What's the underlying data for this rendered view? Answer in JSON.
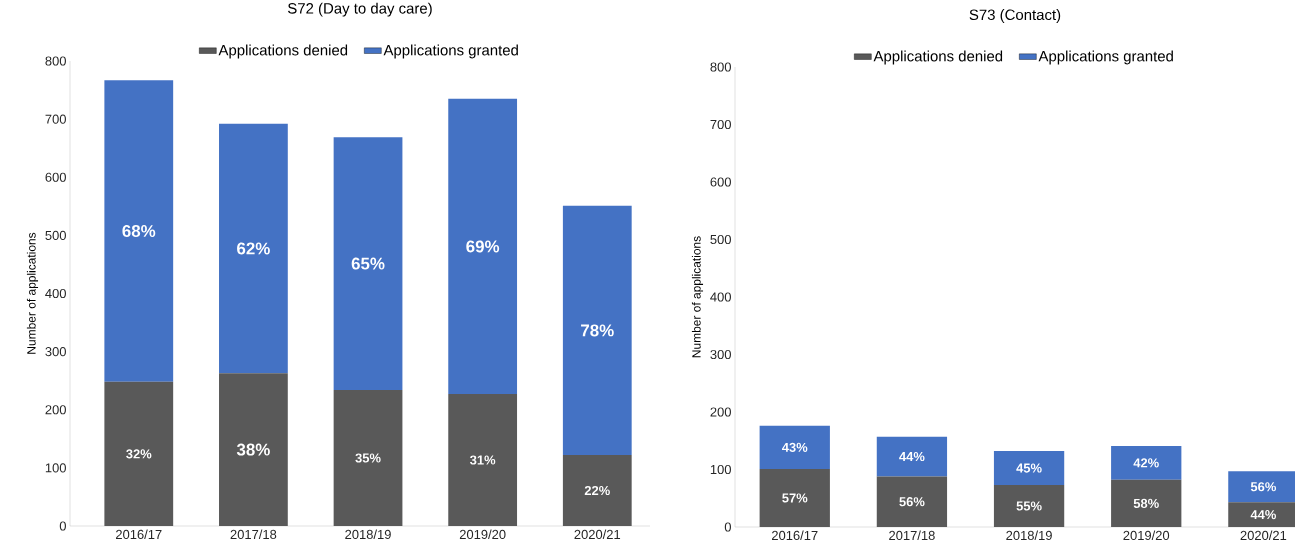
{
  "chart_data": [
    {
      "type": "bar",
      "stacked": true,
      "title": "S72 (Day to day care)",
      "ylabel": "Number of applications",
      "categories": [
        "2016/17",
        "2017/18",
        "2018/19",
        "2019/20",
        "2020/21"
      ],
      "series": [
        {
          "name": "Applications denied",
          "color": "#595959",
          "values": [
            248,
            263,
            234,
            227,
            122
          ]
        },
        {
          "name": "Applications granted",
          "color": "#4472c4",
          "values": [
            519,
            429,
            435,
            508,
            429
          ]
        }
      ],
      "annotations": [
        "32%",
        "38%",
        "35%",
        "31%",
        "22%",
        "68%",
        "62%",
        "65%",
        "69%",
        "78%"
      ],
      "ylim": [
        0,
        800
      ],
      "yticks": [
        0,
        100,
        200,
        300,
        400,
        500,
        600,
        700,
        800
      ],
      "legend": "top"
    },
    {
      "type": "bar",
      "stacked": true,
      "title": "S73 (Contact)",
      "ylabel": "Number of applications",
      "categories": [
        "2016/17",
        "2017/18",
        "2018/19",
        "2019/20",
        "2020/21"
      ],
      "series": [
        {
          "name": "Applications denied",
          "color": "#595959",
          "values": [
            101,
            88,
            73,
            82,
            43
          ]
        },
        {
          "name": "Applications granted",
          "color": "#4472c4",
          "values": [
            75,
            69,
            59,
            59,
            54
          ]
        }
      ],
      "annotations": [
        "57%",
        "56%",
        "55%",
        "58%",
        "44%",
        "43%",
        "44%",
        "45%",
        "42%",
        "56%"
      ],
      "ylim": [
        0,
        800
      ],
      "yticks": [
        0,
        100,
        200,
        300,
        400,
        500,
        600,
        700,
        800
      ],
      "legend": "top"
    }
  ]
}
